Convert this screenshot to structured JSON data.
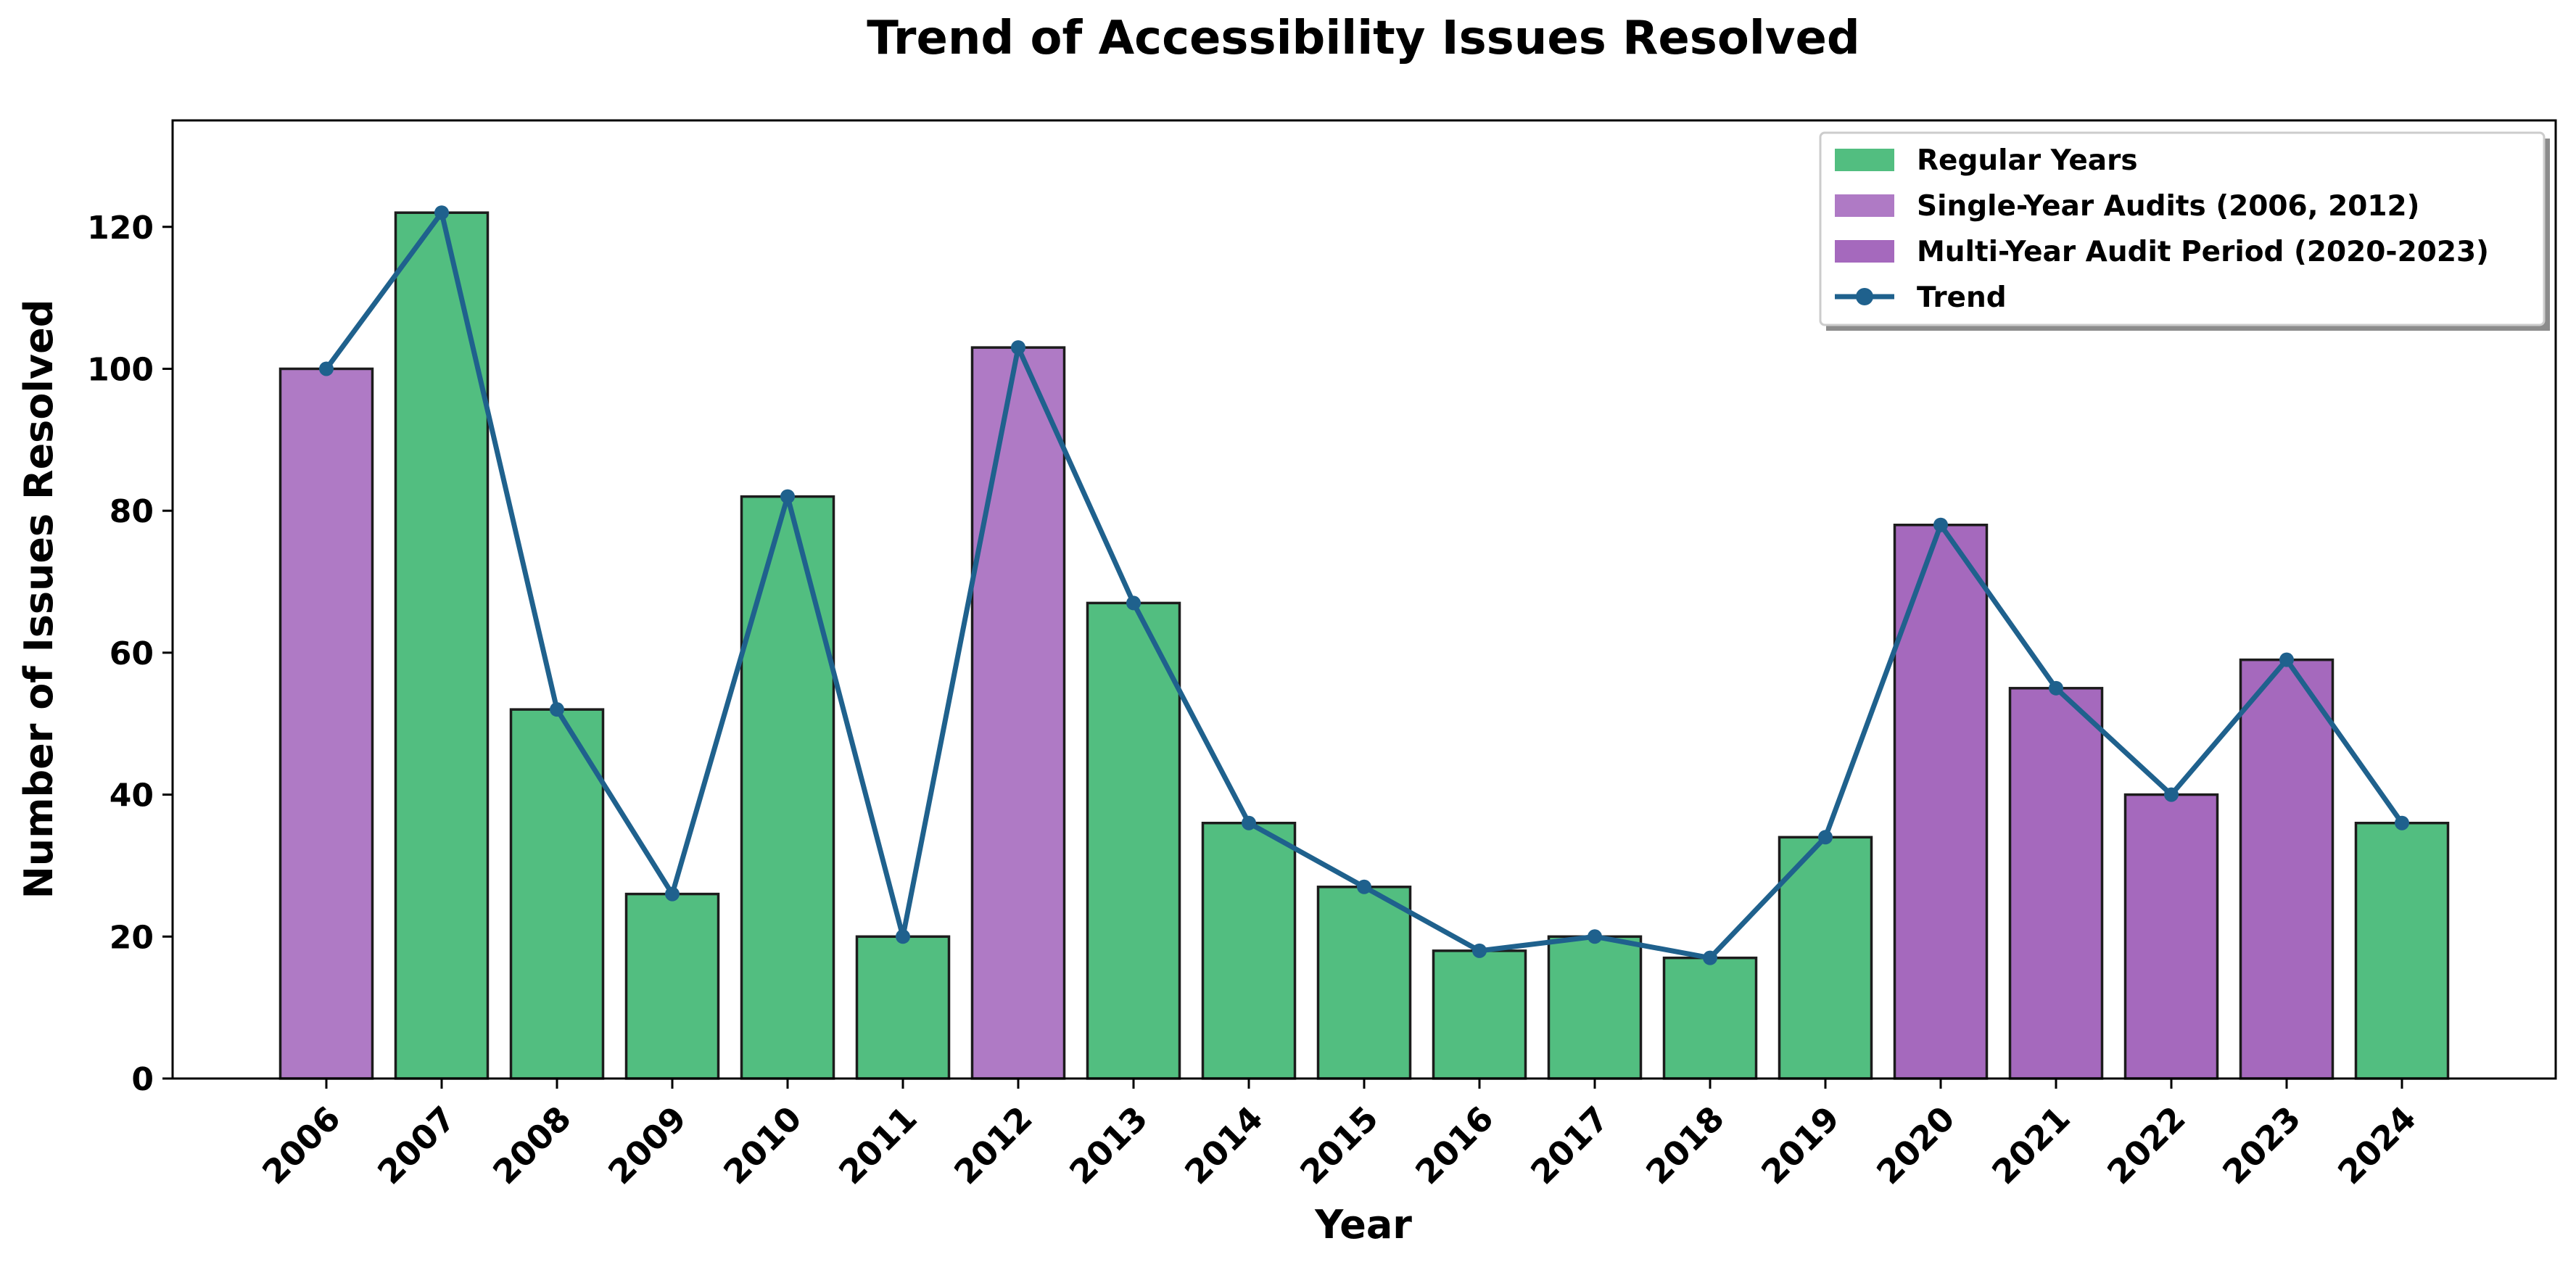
{
  "chart_data": {
    "type": "bar",
    "title": "Trend of Accessibility Issues Resolved",
    "xlabel": "Year",
    "ylabel": "Number of Issues Resolved",
    "ylim": [
      0,
      135
    ],
    "yticks": [
      0,
      20,
      40,
      60,
      80,
      100,
      120
    ],
    "grid": false,
    "legend_position": "top-right",
    "categories": [
      "2006",
      "2007",
      "2008",
      "2009",
      "2010",
      "2011",
      "2012",
      "2013",
      "2014",
      "2015",
      "2016",
      "2017",
      "2018",
      "2019",
      "2020",
      "2021",
      "2022",
      "2023",
      "2024"
    ],
    "values": [
      100,
      122,
      52,
      26,
      82,
      20,
      103,
      67,
      36,
      27,
      18,
      20,
      17,
      34,
      78,
      55,
      40,
      59,
      36
    ],
    "groups": [
      "single",
      "regular",
      "regular",
      "regular",
      "regular",
      "regular",
      "single",
      "regular",
      "regular",
      "regular",
      "regular",
      "regular",
      "regular",
      "regular",
      "multi",
      "multi",
      "multi",
      "multi",
      "regular"
    ],
    "series": [
      {
        "key": "regular",
        "name": "Regular Years",
        "kind": "bar",
        "color": "#52be80"
      },
      {
        "key": "single",
        "name": "Single-Year Audits (2006, 2012)",
        "kind": "bar",
        "color": "#af7ac5"
      },
      {
        "key": "multi",
        "name": "Multi-Year Audit Period (2020-2023)",
        "kind": "bar",
        "color": "#a569bd"
      },
      {
        "key": "trend",
        "name": "Trend",
        "kind": "line",
        "color": "#1f618d",
        "values": [
          100,
          122,
          52,
          26,
          82,
          20,
          103,
          67,
          36,
          27,
          18,
          20,
          17,
          34,
          78,
          55,
          40,
          59,
          36
        ]
      }
    ]
  }
}
